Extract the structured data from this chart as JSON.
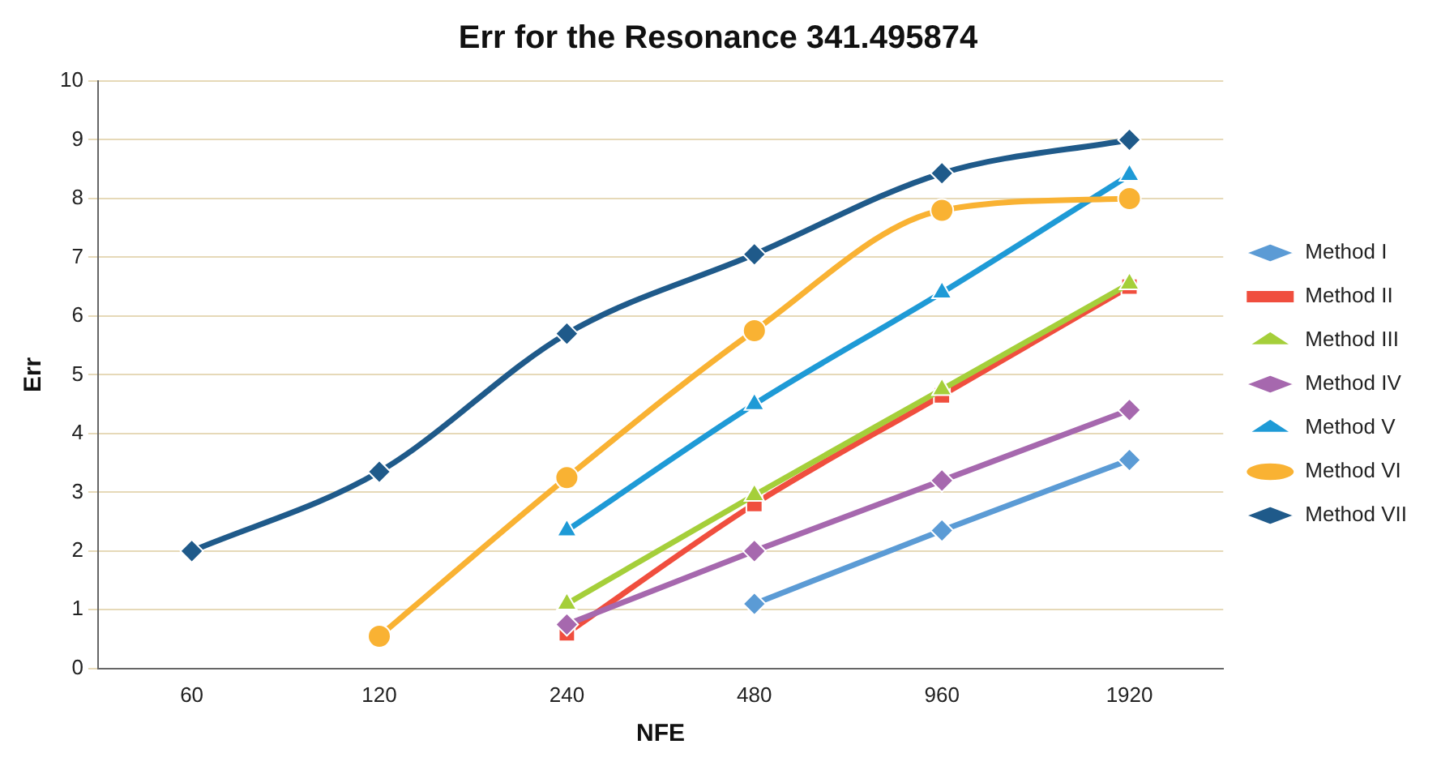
{
  "chart_data": {
    "type": "line",
    "title": "Err for the Resonance 341.495874",
    "xlabel": "NFE",
    "ylabel": "Err",
    "categories": [
      "60",
      "120",
      "240",
      "480",
      "960",
      "1920"
    ],
    "series": [
      {
        "name": "Method I",
        "color": "#5b9bd5",
        "marker": "diamond",
        "values": [
          null,
          null,
          null,
          1.1,
          2.35,
          3.55
        ]
      },
      {
        "name": "Method II",
        "color": "#f04e3e",
        "marker": "square",
        "values": [
          null,
          null,
          0.6,
          2.8,
          4.65,
          6.5
        ]
      },
      {
        "name": "Method III",
        "color": "#a5cf3a",
        "marker": "triangle",
        "values": [
          null,
          null,
          1.1,
          2.95,
          4.75,
          6.55
        ]
      },
      {
        "name": "Method IV",
        "color": "#a668ae",
        "marker": "diamond",
        "values": [
          null,
          null,
          0.75,
          2.0,
          3.2,
          4.4
        ]
      },
      {
        "name": "Method V",
        "color": "#1e9ad6",
        "marker": "triangle",
        "values": [
          null,
          null,
          2.35,
          4.5,
          6.4,
          8.4
        ]
      },
      {
        "name": "Method VI",
        "color": "#f9b233",
        "marker": "circle",
        "values": [
          null,
          0.55,
          3.25,
          5.75,
          7.8,
          8.0
        ]
      },
      {
        "name": "Method VII",
        "color": "#1f5a8a",
        "marker": "diamond",
        "values": [
          2.0,
          3.35,
          5.7,
          7.05,
          8.43,
          9.0
        ]
      }
    ],
    "ylim": [
      0,
      10
    ],
    "yticks": [
      0,
      1,
      2,
      3,
      4,
      5,
      6,
      7,
      8,
      9,
      10
    ],
    "grid": "y",
    "legend": "right",
    "line_style": "solid"
  }
}
